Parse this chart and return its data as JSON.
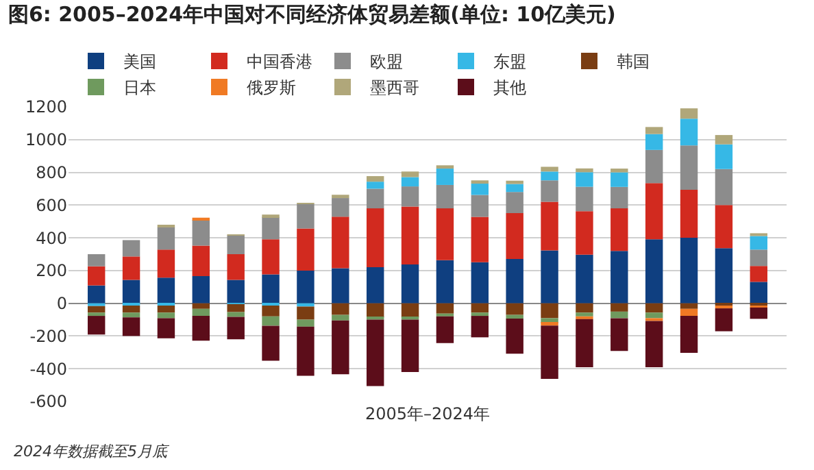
{
  "chart_data": {
    "type": "bar",
    "stacked": true,
    "title": "图6: 2005–2024年中国对不同经济体贸易差额(单位: 10亿美元)",
    "xlabel": "2005年–2024年",
    "categories": [
      null,
      null,
      null,
      null,
      null,
      null,
      null,
      null,
      null,
      null,
      null,
      null,
      null,
      null,
      null,
      null,
      null,
      null,
      null,
      null
    ],
    "series": [
      {
        "name": "美国",
        "color": "#0f3f80",
        "values": [
          109,
          143,
          157,
          166,
          143,
          177,
          200,
          214,
          220,
          237,
          263,
          251,
          271,
          323,
          297,
          320,
          391,
          400,
          337,
          131
        ]
      },
      {
        "name": "中国香港",
        "color": "#d22a1f",
        "values": [
          117,
          143,
          171,
          186,
          157,
          214,
          257,
          315,
          360,
          354,
          317,
          277,
          280,
          297,
          266,
          260,
          343,
          294,
          263,
          97
        ]
      },
      {
        "name": "欧盟",
        "color": "#8c8c8c",
        "values": [
          74,
          100,
          137,
          157,
          114,
          137,
          150,
          114,
          120,
          123,
          143,
          134,
          129,
          131,
          149,
          131,
          203,
          271,
          220,
          100
        ]
      },
      {
        "name": "东盟",
        "color": "#36b8e6",
        "values": [
          -17,
          -14,
          -14,
          null,
          -5,
          -14,
          -20,
          null,
          43,
          57,
          100,
          69,
          49,
          54,
          89,
          89,
          97,
          163,
          151,
          83
        ]
      },
      {
        "name": "韩国",
        "color": "#7a3d12",
        "values": [
          -40,
          -43,
          -43,
          -34,
          -49,
          -66,
          -80,
          -71,
          -86,
          -86,
          -63,
          -57,
          -71,
          -91,
          -57,
          -51,
          -57,
          -34,
          -14,
          -14
        ]
      },
      {
        "name": "日本",
        "color": "#6f9a5e",
        "values": [
          -20,
          -29,
          -34,
          -43,
          -29,
          -57,
          -43,
          -34,
          -14,
          -14,
          -17,
          -20,
          -23,
          -31,
          -23,
          -40,
          -34,
          null,
          null,
          null
        ]
      },
      {
        "name": "俄罗斯",
        "color": "#f07a24",
        "values": [
          null,
          null,
          null,
          14,
          null,
          null,
          null,
          null,
          null,
          null,
          null,
          null,
          null,
          -14,
          -17,
          null,
          -17,
          -43,
          -17,
          -12
        ]
      },
      {
        "name": "墨西哥",
        "color": "#b0a77a",
        "values": [
          null,
          null,
          11,
          null,
          5,
          14,
          5,
          20,
          34,
          34,
          20,
          20,
          20,
          29,
          23,
          23,
          43,
          63,
          57,
          17
        ]
      },
      {
        "name": "其他",
        "color": "#5c0d1a",
        "values": [
          -114,
          -114,
          -123,
          -151,
          -137,
          -214,
          -300,
          -329,
          -406,
          -320,
          -163,
          -131,
          -214,
          -326,
          -294,
          -200,
          -283,
          -226,
          -140,
          -69
        ]
      }
    ],
    "ylim": [
      -600,
      1200
    ],
    "yticks": [
      -600,
      -400,
      -200,
      0,
      200,
      400,
      600,
      800,
      1000,
      1200
    ],
    "grid": "y",
    "legend": "top",
    "annotations": [
      "2024年数据截至5月底"
    ]
  }
}
